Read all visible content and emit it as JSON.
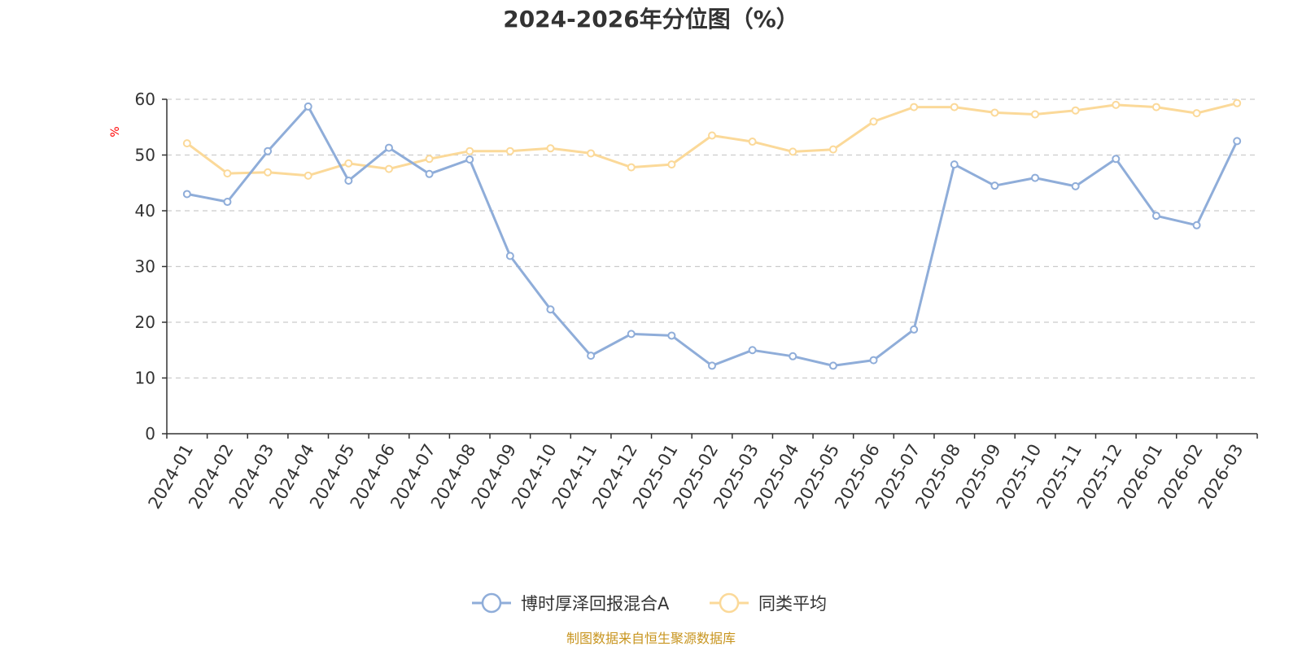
{
  "chart_data": {
    "type": "line",
    "title": "2024-2026年分位图（%）",
    "ylabel": "%",
    "xlabel": "",
    "ylim": [
      0,
      60
    ],
    "yticks": [
      0,
      10,
      20,
      30,
      40,
      50,
      60
    ],
    "grid": true,
    "categories": [
      "2024-01",
      "2024-02",
      "2024-03",
      "2024-04",
      "2024-05",
      "2024-06",
      "2024-07",
      "2024-08",
      "2024-09",
      "2024-10",
      "2024-11",
      "2024-12",
      "2025-01",
      "2025-02",
      "2025-03",
      "2025-04",
      "2025-05",
      "2025-06",
      "2025-07",
      "2025-08",
      "2025-09",
      "2025-10",
      "2025-11",
      "2025-12",
      "2026-01",
      "2026-02",
      "2026-03"
    ],
    "series": [
      {
        "name": "博时厚泽回报混合A",
        "color": "#8fadd9",
        "values": [
          43.0,
          41.6,
          50.7,
          58.7,
          45.4,
          51.3,
          46.6,
          49.2,
          31.9,
          22.3,
          14.0,
          17.9,
          17.6,
          12.2,
          15.0,
          13.9,
          12.2,
          13.2,
          18.7,
          48.3,
          44.5,
          45.9,
          44.4,
          49.3,
          39.1,
          37.4,
          52.5
        ]
      },
      {
        "name": "同类平均",
        "color": "#fbd999",
        "values": [
          52.1,
          46.7,
          46.9,
          46.3,
          48.5,
          47.5,
          49.3,
          50.7,
          50.7,
          51.2,
          50.3,
          47.8,
          48.3,
          53.5,
          52.4,
          50.6,
          51.0,
          56.0,
          58.6,
          58.6,
          57.6,
          57.3,
          58.0,
          59.0,
          58.6,
          57.5,
          59.3
        ]
      }
    ],
    "legend_position": "bottom-center"
  },
  "source": {
    "text": "制图数据来自恒生聚源数据库",
    "color": "#c8951f"
  },
  "colors": {
    "axis": "#333333",
    "grid": "#cccccc",
    "unit": "#ff0000",
    "marker_fill": "#ffffff"
  }
}
